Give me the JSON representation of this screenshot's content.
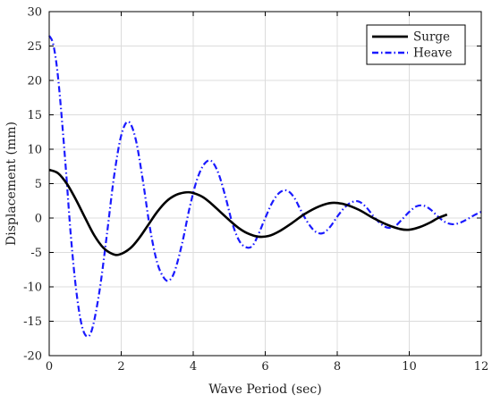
{
  "chart_data": {
    "type": "line",
    "title": "",
    "xlabel": "Wave Period (sec)",
    "ylabel": "Displacement (mm)",
    "xlim": [
      0,
      12
    ],
    "ylim": [
      -20,
      30
    ],
    "xticks": [
      0,
      2,
      4,
      6,
      8,
      10,
      12
    ],
    "yticks": [
      -20,
      -15,
      -10,
      -5,
      0,
      5,
      10,
      15,
      20,
      25,
      30
    ],
    "grid": true,
    "legend_position": "top-right",
    "series": [
      {
        "name": "Surge",
        "color": "#000000",
        "line_style": "solid",
        "x": [
          0,
          0.25,
          0.5,
          0.75,
          1.0,
          1.25,
          1.5,
          1.75,
          1.95,
          2.25,
          2.5,
          2.75,
          3.0,
          3.25,
          3.5,
          3.75,
          3.95,
          4.25,
          4.5,
          4.75,
          5.0,
          5.25,
          5.5,
          5.8,
          6.1,
          6.4,
          6.75,
          7.1,
          7.5,
          7.85,
          8.2,
          8.6,
          9.0,
          9.4,
          9.75,
          10.0,
          10.3,
          10.6,
          10.8,
          11.05
        ],
        "y": [
          7.0,
          6.5,
          4.9,
          2.6,
          0.0,
          -2.5,
          -4.3,
          -5.2,
          -5.3,
          -4.4,
          -2.9,
          -1.0,
          0.9,
          2.4,
          3.3,
          3.7,
          3.7,
          3.1,
          2.1,
          0.9,
          -0.3,
          -1.4,
          -2.2,
          -2.7,
          -2.6,
          -1.9,
          -0.7,
          0.6,
          1.7,
          2.2,
          2.0,
          1.2,
          0.0,
          -1.0,
          -1.6,
          -1.7,
          -1.3,
          -0.6,
          0.0,
          0.5
        ]
      },
      {
        "name": "Heave",
        "color": "#1a1aff",
        "line_style": "dashdot",
        "x": [
          0,
          0.1,
          0.2,
          0.3,
          0.45,
          0.6,
          0.75,
          0.9,
          1.05,
          1.2,
          1.4,
          1.6,
          1.8,
          2.0,
          2.2,
          2.4,
          2.6,
          2.8,
          3.0,
          3.2,
          3.35,
          3.5,
          3.7,
          3.9,
          4.1,
          4.3,
          4.5,
          4.7,
          4.9,
          5.1,
          5.3,
          5.5,
          5.65,
          5.8,
          6.0,
          6.2,
          6.4,
          6.6,
          6.8,
          7.0,
          7.2,
          7.4,
          7.6,
          7.8,
          8.0,
          8.2,
          8.4,
          8.6,
          8.8,
          9.0,
          9.2,
          9.4,
          9.6,
          9.8,
          10.0,
          10.2,
          10.4,
          10.6,
          10.8,
          11.0,
          11.2,
          11.4,
          11.6,
          11.8,
          12.0
        ],
        "y": [
          26.5,
          25.5,
          22.5,
          17.5,
          8.0,
          -2.5,
          -10.5,
          -15.5,
          -17.2,
          -16.0,
          -10.5,
          -2.5,
          6.0,
          12.0,
          14.0,
          11.5,
          5.5,
          -1.5,
          -6.5,
          -8.8,
          -9.0,
          -7.5,
          -3.5,
          1.5,
          5.5,
          7.8,
          8.3,
          6.5,
          3.0,
          -1.0,
          -3.5,
          -4.3,
          -4.0,
          -2.5,
          0.0,
          2.3,
          3.7,
          4.0,
          3.0,
          1.0,
          -0.8,
          -2.0,
          -2.2,
          -1.3,
          0.2,
          1.5,
          2.3,
          2.4,
          1.6,
          0.3,
          -0.8,
          -1.4,
          -1.2,
          -0.2,
          0.9,
          1.7,
          1.8,
          1.2,
          0.2,
          -0.6,
          -0.9,
          -0.7,
          -0.2,
          0.4,
          0.9
        ]
      }
    ]
  }
}
